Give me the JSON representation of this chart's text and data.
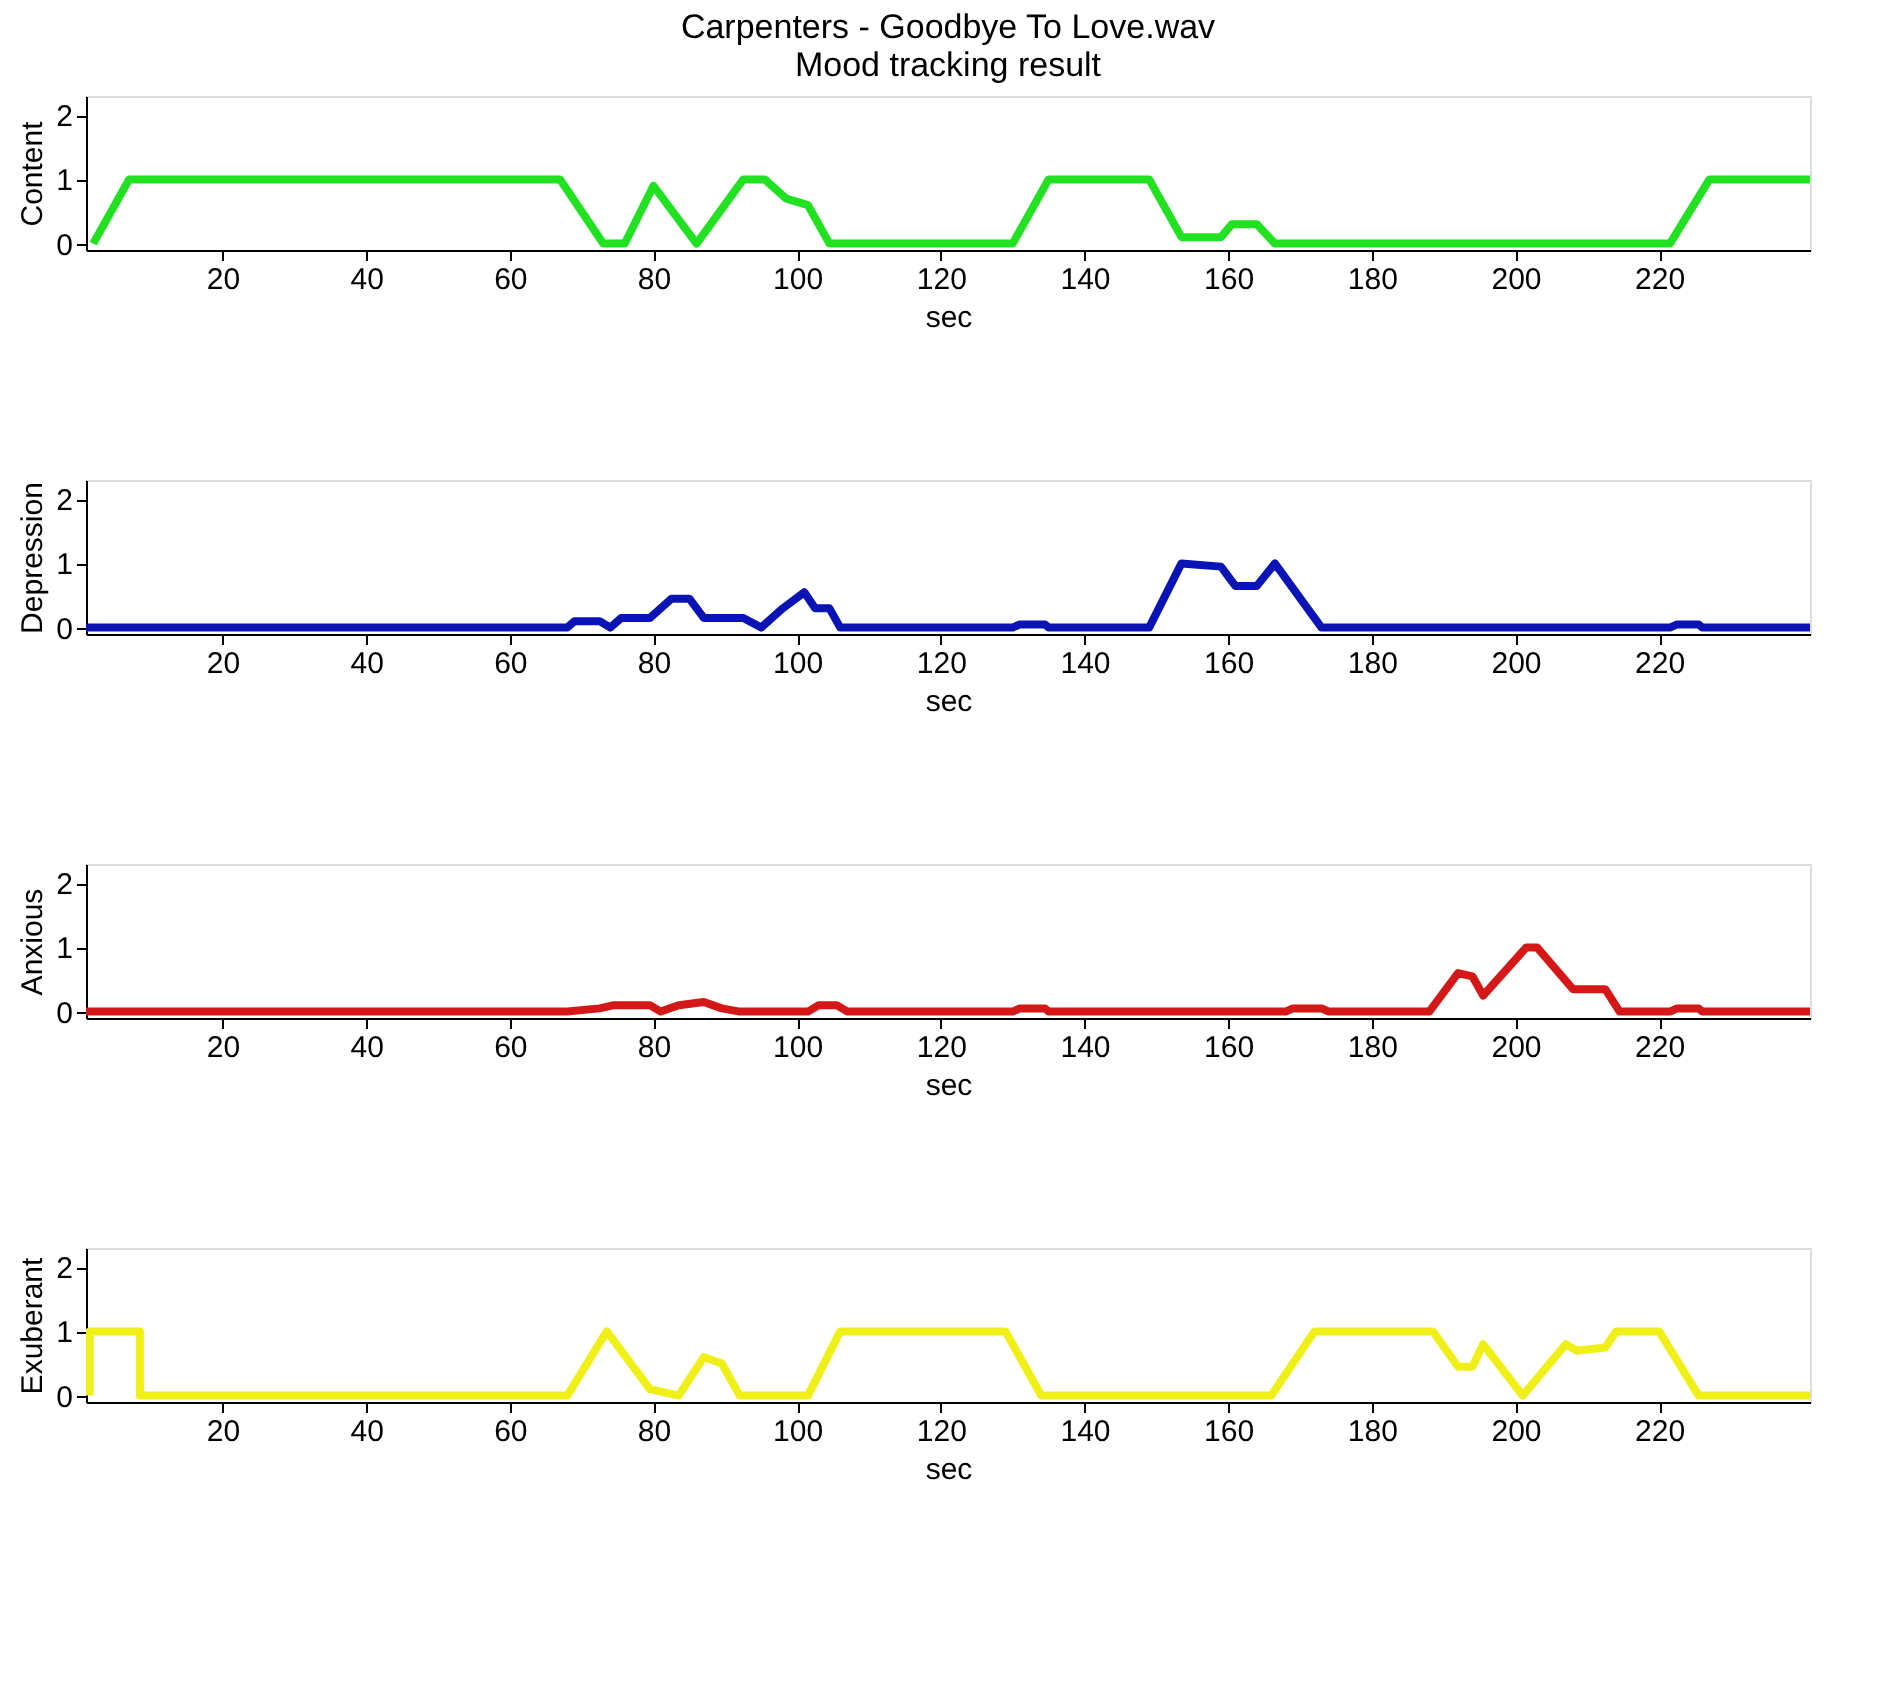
{
  "chart_data": [
    {
      "type": "line",
      "title": "Carpenters - Goodbye To Love.wav",
      "subtitle": "Mood tracking result",
      "xlabel": "sec",
      "ylabel": "Content",
      "xlim": [
        1,
        241
      ],
      "ylim": [
        -0.1,
        2.3
      ],
      "xticks": [
        20,
        40,
        60,
        80,
        100,
        120,
        140,
        160,
        180,
        200,
        220
      ],
      "yticks": [
        0,
        1,
        2
      ],
      "grid": false,
      "series": [
        {
          "color": "#22e022",
          "x": [
            2,
            7,
            67,
            73,
            76,
            80,
            86,
            92.5,
            95.5,
            98.5,
            101.5,
            104.5,
            130,
            135,
            149,
            153.5,
            159,
            160.5,
            164,
            166.5,
            221.5,
            227,
            241
          ],
          "values": [
            0,
            1,
            1,
            0,
            0,
            0.9,
            0,
            1,
            1,
            0.7,
            0.6,
            0,
            0,
            1,
            1,
            0.1,
            0.1,
            0.3,
            0.3,
            0,
            0,
            1,
            1
          ]
        }
      ]
    },
    {
      "type": "line",
      "xlabel": "sec",
      "ylabel": "Depression",
      "xlim": [
        1,
        241
      ],
      "ylim": [
        -0.1,
        2.3
      ],
      "xticks": [
        20,
        40,
        60,
        80,
        100,
        120,
        140,
        160,
        180,
        200,
        220
      ],
      "yticks": [
        0,
        1,
        2
      ],
      "grid": false,
      "series": [
        {
          "color": "#0a14b4",
          "x": [
            1,
            68,
            69,
            72.5,
            74,
            75.5,
            79.5,
            82.5,
            85,
            87,
            92.5,
            95,
            98,
            101,
            102.5,
            104.5,
            106,
            130,
            131,
            134.5,
            135,
            149,
            153.5,
            159,
            161,
            164,
            166.5,
            173,
            221.5,
            222.5,
            225.5,
            226,
            241
          ],
          "values": [
            0,
            0,
            0.1,
            0.1,
            0,
            0.15,
            0.15,
            0.45,
            0.45,
            0.15,
            0.15,
            0,
            0.3,
            0.55,
            0.3,
            0.3,
            0,
            0,
            0.05,
            0.05,
            0,
            0,
            1,
            0.95,
            0.65,
            0.65,
            1,
            0,
            0,
            0.05,
            0.05,
            0,
            0
          ]
        }
      ]
    },
    {
      "type": "line",
      "xlabel": "sec",
      "ylabel": "Anxious",
      "xlim": [
        1,
        241
      ],
      "ylim": [
        -0.1,
        2.3
      ],
      "xticks": [
        20,
        40,
        60,
        80,
        100,
        120,
        140,
        160,
        180,
        200,
        220
      ],
      "yticks": [
        0,
        1,
        2
      ],
      "grid": false,
      "series": [
        {
          "color": "#d41818",
          "x": [
            1,
            68,
            72.5,
            74.5,
            79.5,
            81,
            83.5,
            87,
            89.5,
            92,
            101.5,
            103,
            105.5,
            107,
            130,
            131,
            134.5,
            135,
            168,
            169,
            173,
            174,
            188,
            192,
            194,
            195.5,
            201.5,
            203,
            208,
            212.5,
            214.5,
            221.5,
            222.5,
            225.5,
            226,
            241
          ],
          "values": [
            0,
            0,
            0.05,
            0.1,
            0.1,
            0,
            0.1,
            0.15,
            0.05,
            0,
            0,
            0.1,
            0.1,
            0,
            0,
            0.05,
            0.05,
            0,
            0,
            0.05,
            0.05,
            0,
            0,
            0.6,
            0.55,
            0.25,
            1,
            1,
            0.35,
            0.35,
            0,
            0,
            0.05,
            0.05,
            0,
            0
          ]
        }
      ]
    },
    {
      "type": "line",
      "xlabel": "sec",
      "ylabel": "Exuberant",
      "xlim": [
        1,
        241
      ],
      "ylim": [
        -0.1,
        2.3
      ],
      "xticks": [
        20,
        40,
        60,
        80,
        100,
        120,
        140,
        160,
        180,
        200,
        220
      ],
      "yticks": [
        0,
        1,
        2
      ],
      "grid": false,
      "series": [
        {
          "color": "#f0f018",
          "x": [
            1.5,
            1.5,
            8.5,
            8.5,
            68,
            73.5,
            79.5,
            83.5,
            87,
            89.5,
            92,
            101.5,
            106,
            129,
            134,
            166,
            172,
            188.5,
            192,
            194,
            195.5,
            201,
            207,
            208.5,
            212.5,
            214,
            220,
            225.5,
            241
          ],
          "values": [
            0,
            1,
            1,
            0,
            0,
            1,
            0.1,
            0,
            0.6,
            0.5,
            0,
            0,
            1,
            1,
            0,
            0,
            1,
            1,
            0.45,
            0.45,
            0.8,
            0,
            0.8,
            0.7,
            0.75,
            1,
            1,
            0,
            0
          ]
        }
      ]
    }
  ]
}
